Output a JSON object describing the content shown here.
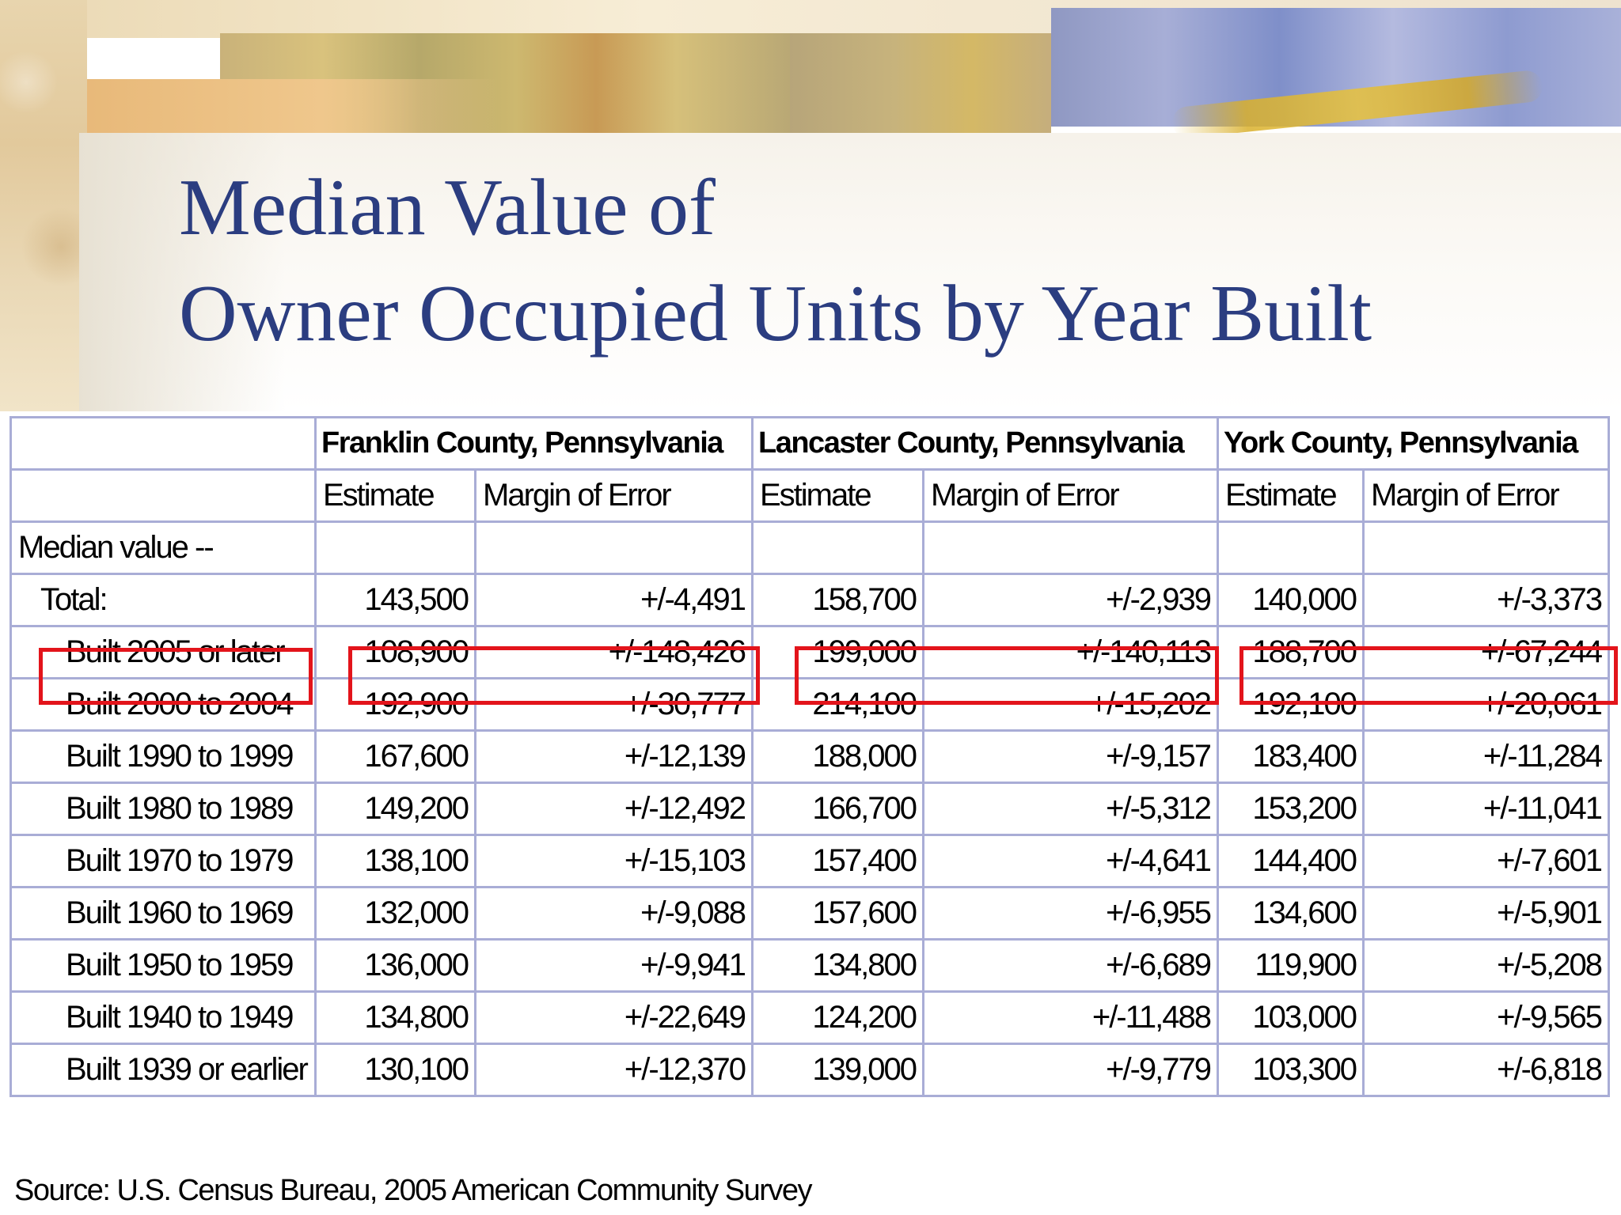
{
  "slide": {
    "title_line1": "Median Value of",
    "title_line2": "Owner Occupied Units by Year Built",
    "title_color": "#2b3d80",
    "source": "Source: U.S. Census Bureau, 2005 American Community Survey",
    "highlight_color": "#e3141b"
  },
  "table": {
    "counties": [
      "Franklin County, Pennsylvania",
      "Lancaster County, Pennsylvania",
      "York County, Pennsylvania"
    ],
    "subheaders": [
      "Estimate",
      "Margin of Error",
      "Estimate",
      "Margin of Error",
      "Estimate",
      "Margin of Error"
    ],
    "section_label": "Median value --",
    "rows": [
      {
        "label": "Total:",
        "values": [
          "143,500",
          "+/-4,491",
          "158,700",
          "+/-2,939",
          "140,000",
          "+/-3,373"
        ]
      },
      {
        "label": "Built 2005 or later",
        "values": [
          "108,900",
          "+/-148,426",
          "199,000",
          "+/-140,113",
          "188,700",
          "+/-67,244"
        ]
      },
      {
        "label": "Built 2000 to 2004",
        "values": [
          "192,900",
          "+/-30,777",
          "214,100",
          "+/-15,202",
          "192,100",
          "+/-20,061"
        ]
      },
      {
        "label": "Built 1990 to 1999",
        "values": [
          "167,600",
          "+/-12,139",
          "188,000",
          "+/-9,157",
          "183,400",
          "+/-11,284"
        ]
      },
      {
        "label": "Built 1980 to 1989",
        "values": [
          "149,200",
          "+/-12,492",
          "166,700",
          "+/-5,312",
          "153,200",
          "+/-11,041"
        ]
      },
      {
        "label": "Built 1970 to 1979",
        "values": [
          "138,100",
          "+/-15,103",
          "157,400",
          "+/-4,641",
          "144,400",
          "+/-7,601"
        ]
      },
      {
        "label": "Built 1960 to 1969",
        "values": [
          "132,000",
          "+/-9,088",
          "157,600",
          "+/-6,955",
          "134,600",
          "+/-5,901"
        ]
      },
      {
        "label": "Built 1950 to 1959",
        "values": [
          "136,000",
          "+/-9,941",
          "134,800",
          "+/-6,689",
          "119,900",
          "+/-5,208"
        ]
      },
      {
        "label": "Built 1940 to 1949",
        "values": [
          "134,800",
          "+/-22,649",
          "124,200",
          "+/-11,488",
          "103,000",
          "+/-9,565"
        ]
      },
      {
        "label": "Built 1939 or earlier",
        "values": [
          "130,100",
          "+/-12,370",
          "139,000",
          "+/-9,779",
          "103,300",
          "+/-6,818"
        ]
      }
    ]
  }
}
